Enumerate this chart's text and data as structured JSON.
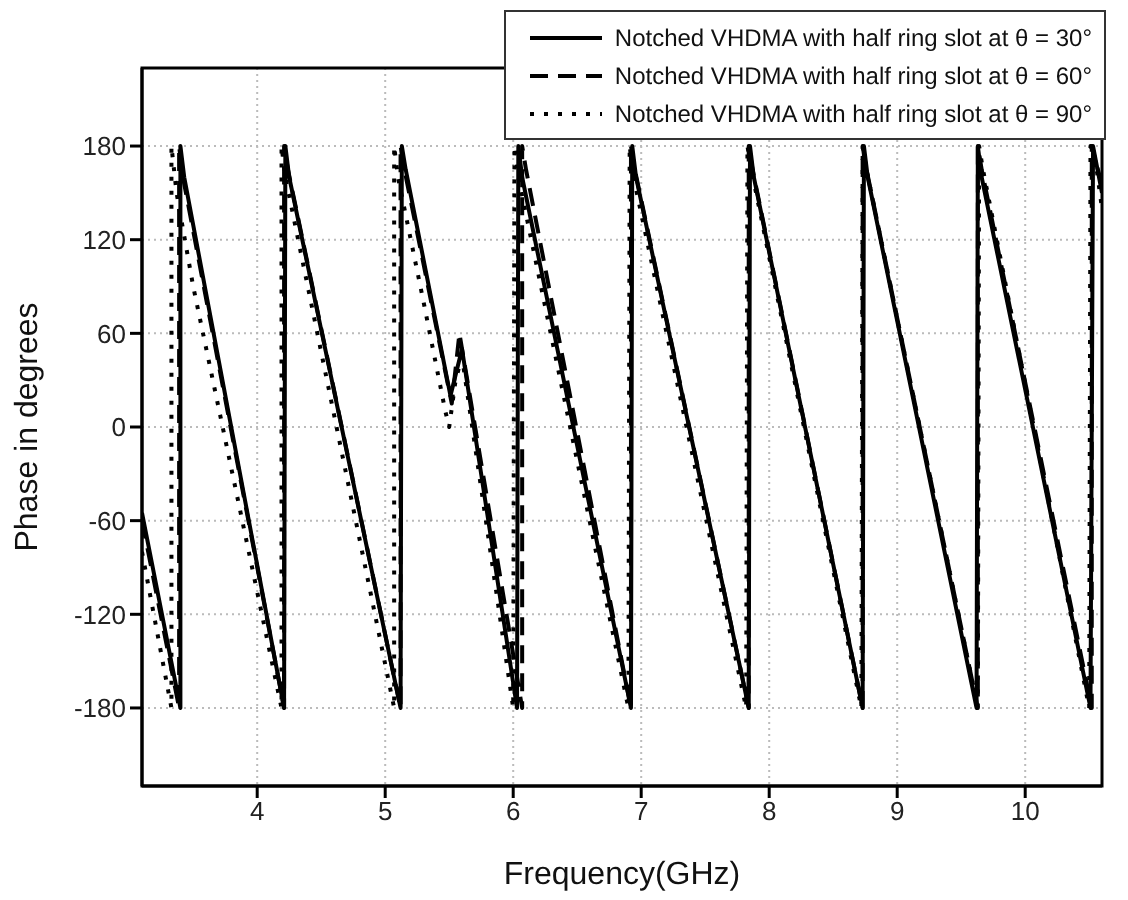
{
  "chart_data": {
    "type": "line",
    "xlabel": "Frequency(GHz)",
    "ylabel": "Phase in degrees",
    "xlim": [
      3.1,
      10.6
    ],
    "xticks": [
      4,
      5,
      6,
      7,
      8,
      9,
      10
    ],
    "ylim": [
      -230,
      230
    ],
    "yticks": [
      -180,
      -120,
      -60,
      0,
      60,
      120,
      180
    ],
    "grid": true,
    "legend": "top right",
    "marker": "none",
    "series": [
      {
        "name": "Notched VHDMA with half ring slot at θ = 30°",
        "color": "#000000",
        "line_style": "solid",
        "x": [
          3.1,
          3.4,
          3.4,
          3.43,
          4.21,
          4.22,
          4.25,
          5.12,
          5.13,
          5.16,
          5.51,
          5.6,
          6.03,
          6.04,
          6.07,
          6.92,
          6.93,
          6.96,
          7.84,
          7.85,
          7.88,
          8.73,
          8.74,
          8.77,
          9.62,
          9.63,
          9.66,
          10.51,
          10.53,
          10.6
        ],
        "values": [
          -55,
          -180,
          180,
          160,
          -180,
          180,
          160,
          -180,
          180,
          165,
          20,
          50,
          -180,
          180,
          160,
          -180,
          180,
          160,
          -180,
          180,
          160,
          -180,
          180,
          160,
          -180,
          180,
          160,
          -180,
          180,
          150
        ]
      },
      {
        "name": "Notched VHDMA with half ring slot at θ = 60°",
        "color": "#000000",
        "line_style": "dashed",
        "x": [
          3.1,
          3.39,
          3.39,
          3.42,
          4.21,
          4.21,
          4.24,
          5.12,
          5.12,
          5.15,
          5.52,
          5.58,
          6.07,
          6.07,
          6.1,
          6.92,
          6.92,
          6.95,
          7.84,
          7.84,
          7.87,
          8.73,
          8.73,
          8.76,
          9.63,
          9.63,
          9.66,
          10.52,
          10.52,
          10.6
        ],
        "values": [
          -60,
          -180,
          180,
          160,
          -180,
          180,
          165,
          -180,
          180,
          165,
          15,
          60,
          -180,
          180,
          165,
          -180,
          180,
          165,
          -180,
          180,
          165,
          -180,
          180,
          165,
          -180,
          180,
          165,
          -180,
          180,
          155
        ]
      },
      {
        "name": "Notched VHDMA with half ring slot at θ = 90°",
        "color": "#000000",
        "line_style": "dotted",
        "x": [
          3.1,
          3.33,
          3.33,
          3.37,
          3.5,
          4.19,
          4.19,
          4.22,
          5.07,
          5.07,
          5.1,
          5.3,
          5.47,
          5.5,
          5.55,
          5.6,
          6.0,
          6.01,
          6.04,
          6.9,
          6.91,
          6.94,
          7.82,
          7.83,
          7.86,
          8.72,
          8.73,
          8.76,
          9.63,
          9.64,
          9.67,
          10.5,
          10.51,
          10.55,
          10.6
        ],
        "values": [
          -80,
          -180,
          180,
          150,
          90,
          -180,
          180,
          160,
          -180,
          180,
          160,
          80,
          10,
          0,
          30,
          45,
          -180,
          180,
          160,
          -180,
          180,
          160,
          -180,
          180,
          165,
          -180,
          180,
          165,
          -180,
          180,
          165,
          -180,
          180,
          170,
          140
        ]
      }
    ]
  }
}
